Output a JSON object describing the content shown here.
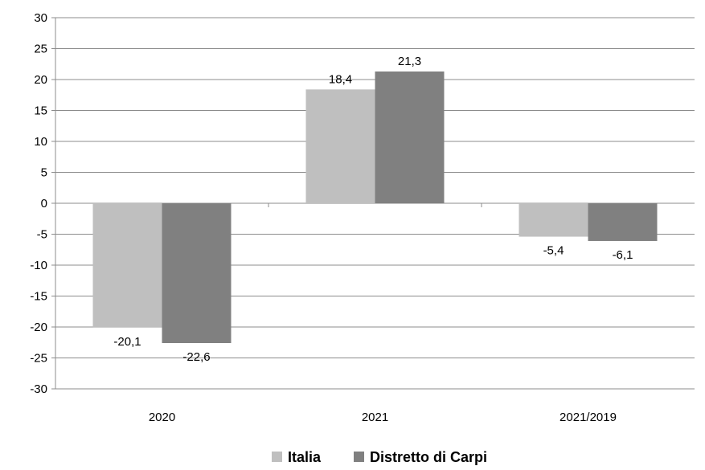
{
  "chart_data": {
    "type": "bar",
    "categories": [
      "2020",
      "2021",
      "2021/2019"
    ],
    "series": [
      {
        "name": "Italia",
        "values": [
          -20.1,
          18.4,
          -5.4
        ],
        "labels": [
          "-20,1",
          "18,4",
          "-5,4"
        ],
        "color": "#bfbfbf"
      },
      {
        "name": "Distretto di Carpi",
        "values": [
          -22.6,
          21.3,
          -6.1
        ],
        "labels": [
          "-22,6",
          "21,3",
          "-6,1"
        ],
        "color": "#808080"
      }
    ],
    "ylim": [
      -30,
      30
    ],
    "yticks": [
      30,
      25,
      20,
      15,
      10,
      5,
      0,
      -5,
      -10,
      -15,
      -20,
      -25,
      -30
    ],
    "grid": true,
    "legend_position": "bottom"
  }
}
